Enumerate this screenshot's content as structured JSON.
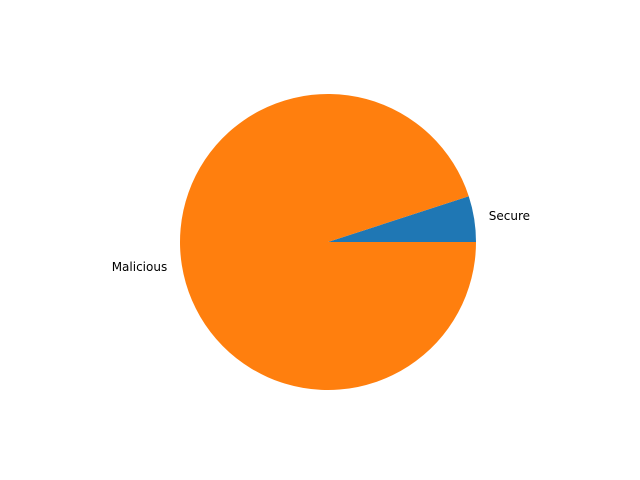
{
  "chart_data": {
    "type": "pie",
    "title": "",
    "start_angle_deg": 0,
    "direction": "counterclockwise",
    "slices": [
      {
        "label": "Secure",
        "value": 5,
        "color": "#1f77b4"
      },
      {
        "label": "Malicious",
        "value": 95,
        "color": "#ff7f0e"
      }
    ]
  }
}
